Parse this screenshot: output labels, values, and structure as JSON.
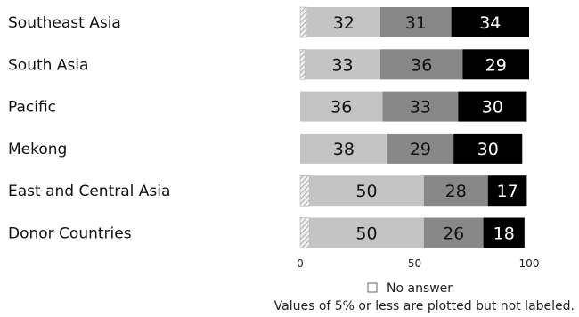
{
  "chart_data": {
    "type": "bar",
    "orientation": "horizontal",
    "stacked": true,
    "categories": [
      "Southeast Asia",
      "South Asia",
      "Pacific",
      "Mekong",
      "East and Central Asia",
      "Donor Countries"
    ],
    "series": [
      {
        "name": "No answer",
        "values": [
          3,
          2,
          0,
          0,
          4,
          4
        ],
        "color": "#e0e0e0",
        "pattern": "hatched",
        "labeled": false
      },
      {
        "values": [
          32,
          33,
          36,
          38,
          50,
          50
        ],
        "color": "#c4c4c4"
      },
      {
        "values": [
          31,
          36,
          33,
          29,
          28,
          26
        ],
        "color": "#888888"
      },
      {
        "values": [
          34,
          29,
          30,
          30,
          17,
          18
        ],
        "color": "#000000"
      }
    ],
    "xlim": [
      0,
      100
    ],
    "xticks": [
      "0",
      "50",
      "100"
    ],
    "legend": {
      "position": "bottom",
      "entries": [
        "No answer"
      ]
    },
    "footnote": "Values of 5% or less are plotted but not labeled."
  }
}
